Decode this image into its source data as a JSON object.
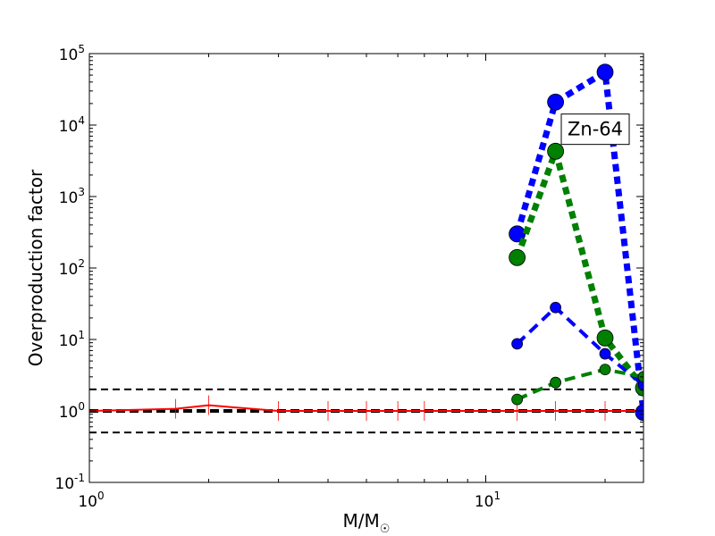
{
  "chart_data": {
    "type": "scatter",
    "x_scale": "log",
    "y_scale": "log",
    "xlim": [
      1,
      25
    ],
    "ylim": [
      0.1,
      100000
    ],
    "grid": false,
    "xlabel": {
      "main": "M/M",
      "subscript": "☉"
    },
    "ylabel": "Overproduction factor",
    "x_ticks": [
      {
        "value": 1,
        "base": "10",
        "exp": "0"
      },
      {
        "value": 10,
        "base": "10",
        "exp": "1"
      }
    ],
    "y_ticks": [
      {
        "value": 0.1,
        "base": "10",
        "exp": "-1"
      },
      {
        "value": 1,
        "base": "10",
        "exp": "0"
      },
      {
        "value": 10,
        "base": "10",
        "exp": "1"
      },
      {
        "value": 100,
        "base": "10",
        "exp": "2"
      },
      {
        "value": 1000,
        "base": "10",
        "exp": "3"
      },
      {
        "value": 10000,
        "base": "10",
        "exp": "4"
      },
      {
        "value": 100000,
        "base": "10",
        "exp": "5"
      }
    ],
    "reference_lines": [
      {
        "y": 2,
        "color": "#000000",
        "style": "dashed",
        "width": 2
      },
      {
        "y": 1,
        "color": "#000000",
        "style": "dashed",
        "width": 4
      },
      {
        "y": 0.5,
        "color": "#000000",
        "style": "dashed",
        "width": 2
      }
    ],
    "series": [
      {
        "x": [
          1,
          1.65,
          2,
          3,
          4,
          5,
          6,
          7,
          12,
          15,
          20,
          25
        ],
        "y": [
          1.0,
          1.07,
          1.2,
          1.0,
          1.0,
          1.0,
          1.0,
          1.0,
          1.0,
          1.0,
          1.0,
          1.0
        ],
        "color": "#ff0000",
        "line_style": "solid",
        "line_width": 2,
        "marker": "vline",
        "marker_size": 22
      },
      {
        "x": [
          12,
          15,
          20,
          25
        ],
        "y": [
          300,
          21000,
          55000,
          0.95
        ],
        "color": "#0000ff",
        "line_style": "dotted",
        "line_width": 7,
        "marker": "circle",
        "marker_size": 9
      },
      {
        "x": [
          12,
          15,
          20,
          25
        ],
        "y": [
          140,
          4300,
          10.5,
          2.1
        ],
        "color": "#008000",
        "line_style": "dotted",
        "line_width": 7,
        "marker": "circle",
        "marker_size": 9
      },
      {
        "x": [
          12,
          15,
          20,
          25
        ],
        "y": [
          8.7,
          28,
          6.3,
          2.3
        ],
        "color": "#0000ff",
        "line_style": "dashed",
        "line_width": 4,
        "marker": "circle",
        "marker_size": 6
      },
      {
        "x": [
          12,
          15,
          20,
          25
        ],
        "y": [
          1.45,
          2.5,
          3.8,
          3.0
        ],
        "color": "#008000",
        "line_style": "dashed",
        "line_width": 4,
        "marker": "circle",
        "marker_size": 6
      }
    ],
    "annotation": {
      "text": "Zn-64",
      "x": 20,
      "y": 9000
    }
  }
}
